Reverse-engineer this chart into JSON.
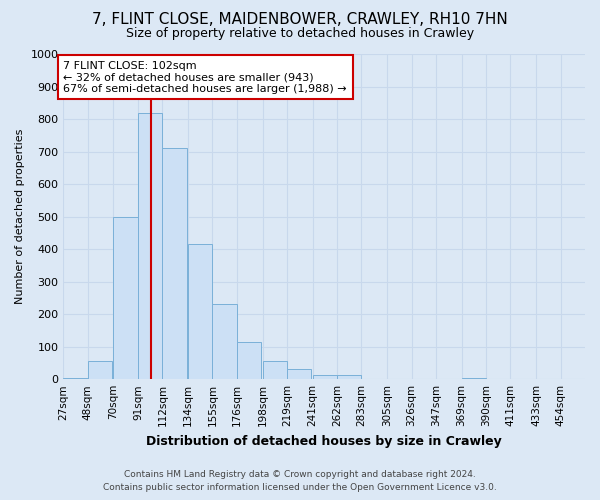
{
  "title_line1": "7, FLINT CLOSE, MAIDENBOWER, CRAWLEY, RH10 7HN",
  "title_line2": "Size of property relative to detached houses in Crawley",
  "xlabel": "Distribution of detached houses by size in Crawley",
  "ylabel": "Number of detached properties",
  "bar_labels": [
    "27sqm",
    "48sqm",
    "70sqm",
    "91sqm",
    "112sqm",
    "134sqm",
    "155sqm",
    "176sqm",
    "198sqm",
    "219sqm",
    "241sqm",
    "262sqm",
    "283sqm",
    "305sqm",
    "326sqm",
    "347sqm",
    "369sqm",
    "390sqm",
    "411sqm",
    "433sqm",
    "454sqm"
  ],
  "bar_values": [
    5,
    55,
    500,
    820,
    710,
    415,
    230,
    115,
    55,
    32,
    13,
    12,
    0,
    0,
    0,
    0,
    5,
    0,
    0,
    0,
    0
  ],
  "bar_color": "#cce0f5",
  "bar_edge_color": "#7ab0d8",
  "grid_color": "#c8d8ec",
  "background_color": "#dce8f5",
  "plot_bg_color": "#dce8f5",
  "annotation_text": "7 FLINT CLOSE: 102sqm\n← 32% of detached houses are smaller (943)\n67% of semi-detached houses are larger (1,988) →",
  "annotation_box_color": "#ffffff",
  "annotation_box_edge": "#cc0000",
  "red_line_x": 102,
  "red_line_color": "#cc0000",
  "footnote": "Contains HM Land Registry data © Crown copyright and database right 2024.\nContains public sector information licensed under the Open Government Licence v3.0.",
  "ylim": [
    0,
    1000
  ],
  "bin_width": 21,
  "title1_fontsize": 11,
  "title2_fontsize": 9,
  "xlabel_fontsize": 9,
  "ylabel_fontsize": 8,
  "tick_fontsize": 7.5,
  "ytick_fontsize": 8,
  "footnote_fontsize": 6.5,
  "annot_fontsize": 8
}
